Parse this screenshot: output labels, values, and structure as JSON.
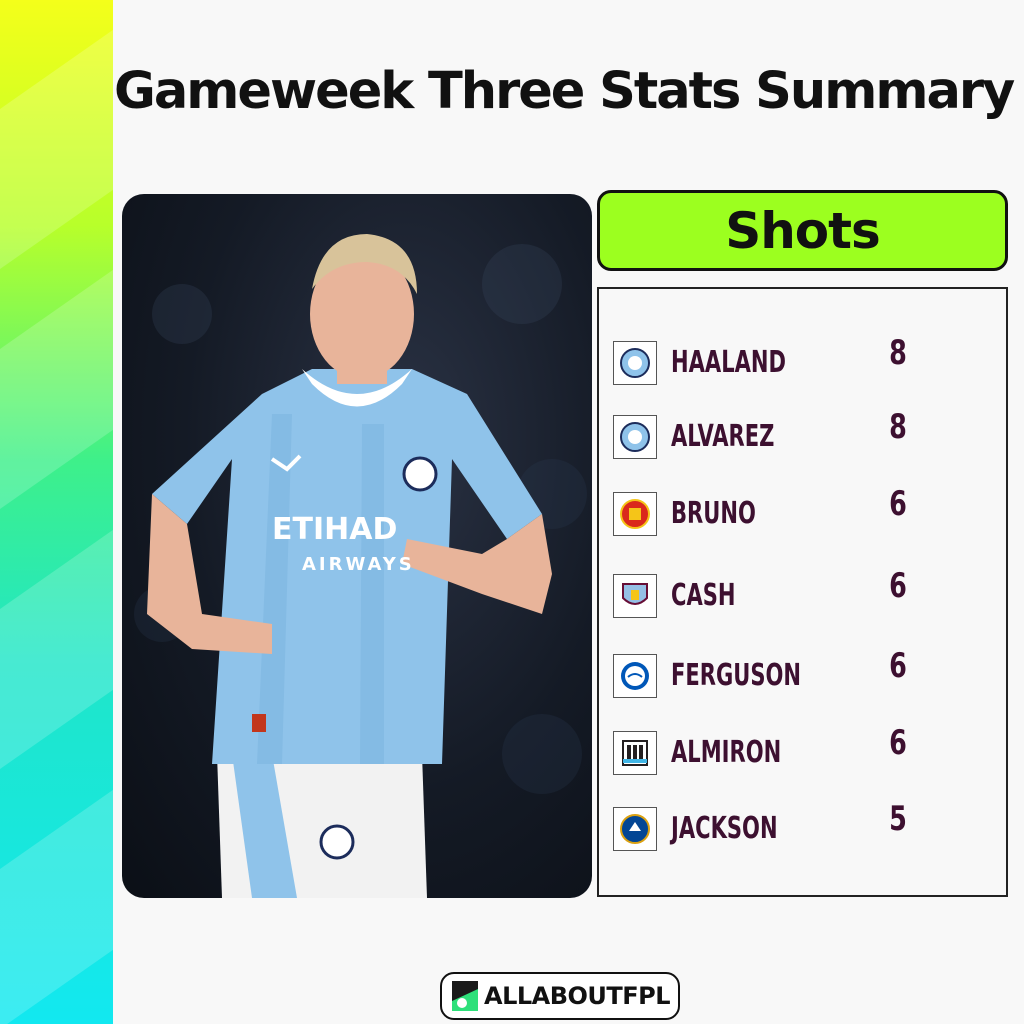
{
  "title": "Gameweek Three Stats Summary",
  "stat_label": "Shots",
  "rows": [
    {
      "club": "man-city",
      "player": "HAALAND",
      "value": "8"
    },
    {
      "club": "man-city",
      "player": "ALVAREZ",
      "value": "8"
    },
    {
      "club": "man-utd",
      "player": "BRUNO",
      "value": "6"
    },
    {
      "club": "aston-villa",
      "player": "CASH",
      "value": "6"
    },
    {
      "club": "brighton",
      "player": "FERGUSON",
      "value": "6"
    },
    {
      "club": "newcastle",
      "player": "ALMIRON",
      "value": "6"
    },
    {
      "club": "chelsea",
      "player": "JACKSON",
      "value": "5"
    }
  ],
  "photo_kit_text": {
    "sponsor": "ETIHAD",
    "sponsor_sub": "AIRWAYS"
  },
  "footer": {
    "brand": "ALLABOUTFPL"
  },
  "colors": {
    "accent_green": "#9cff1f",
    "text_plum": "#3d1030",
    "kit_blue": "#8fc3ea"
  }
}
